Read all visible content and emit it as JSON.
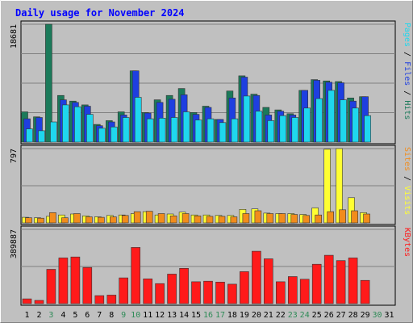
{
  "title": "Daily usage for November 2024",
  "colors": {
    "background": "#c0c0c0",
    "frame_light": "#ffffff",
    "frame_dark": "#808080",
    "title": "#0000ff",
    "hits": "#1b7a5a",
    "files": "#1e3fe0",
    "pages": "#1fd7ee",
    "visits": "#ffff33",
    "sites": "#f28c1c",
    "kbytes": "#ff1a1a",
    "weekday_label": "#000000",
    "weekend_label": "#2e8b57"
  },
  "chart_data": [
    {
      "type": "bar",
      "panel": "hits_files_pages",
      "y_tick_label": "18681",
      "ylim": [
        0,
        18681
      ],
      "right_label": [
        {
          "text": "Pages",
          "color_key": "pages"
        },
        {
          "text": " / ",
          "color_key": "weekday_label"
        },
        {
          "text": "Files",
          "color_key": "files"
        },
        {
          "text": " / ",
          "color_key": "weekday_label"
        },
        {
          "text": "Hits",
          "color_key": "hits"
        }
      ],
      "categories": [
        "1",
        "2",
        "3",
        "4",
        "5",
        "6",
        "7",
        "8",
        "9",
        "10",
        "11",
        "12",
        "13",
        "14",
        "15",
        "16",
        "17",
        "18",
        "19",
        "20",
        "21",
        "22",
        "23",
        "24",
        "25",
        "26",
        "27",
        "28",
        "29",
        "30",
        "31"
      ],
      "series": [
        {
          "name": "Hits",
          "color_key": "hits",
          "values": [
            4800,
            4000,
            18681,
            7400,
            6500,
            5900,
            2800,
            3400,
            4800,
            11300,
            4700,
            6700,
            7400,
            8500,
            4700,
            5700,
            3600,
            8100,
            10500,
            7600,
            5500,
            5100,
            4500,
            8200,
            9900,
            9700,
            9600,
            7000,
            7200,
            0,
            0
          ]
        },
        {
          "name": "Files",
          "color_key": "files",
          "values": [
            3700,
            3900,
            0,
            6700,
            6300,
            5700,
            2600,
            3200,
            4300,
            11300,
            4600,
            6300,
            6800,
            7500,
            4400,
            5500,
            3600,
            7000,
            10300,
            7400,
            4300,
            4900,
            4300,
            8200,
            9800,
            9500,
            9400,
            6500,
            7200,
            0,
            0
          ]
        },
        {
          "name": "Pages",
          "color_key": "pages",
          "values": [
            2100,
            1800,
            3200,
            5900,
            5600,
            4400,
            2200,
            2400,
            3900,
            7100,
            3700,
            3800,
            3900,
            4800,
            3500,
            3700,
            3100,
            3700,
            7300,
            4900,
            3400,
            4200,
            3900,
            5400,
            6900,
            8200,
            6700,
            5400,
            4200,
            0,
            0
          ]
        }
      ]
    },
    {
      "type": "bar",
      "panel": "visits_sites",
      "y_tick_label": "797",
      "ylim": [
        0,
        797
      ],
      "right_label": [
        {
          "text": "Sites",
          "color_key": "sites"
        },
        {
          "text": " / ",
          "color_key": "weekday_label"
        },
        {
          "text": "Visits",
          "color_key": "visits"
        }
      ],
      "categories": [
        "1",
        "2",
        "3",
        "4",
        "5",
        "6",
        "7",
        "8",
        "9",
        "10",
        "11",
        "12",
        "13",
        "14",
        "15",
        "16",
        "17",
        "18",
        "19",
        "20",
        "21",
        "22",
        "23",
        "24",
        "25",
        "26",
        "27",
        "28",
        "29",
        "30",
        "31"
      ],
      "series": [
        {
          "name": "Visits",
          "color_key": "visits",
          "values": [
            60,
            55,
            70,
            85,
            95,
            75,
            65,
            80,
            85,
            100,
            120,
            85,
            95,
            115,
            85,
            85,
            80,
            80,
            145,
            150,
            105,
            100,
            100,
            90,
            160,
            790,
            797,
            270,
            110,
            0,
            0
          ]
        },
        {
          "name": "Sites",
          "color_key": "sites",
          "values": [
            55,
            50,
            110,
            55,
            100,
            65,
            60,
            65,
            80,
            120,
            125,
            100,
            75,
            100,
            75,
            70,
            70,
            65,
            100,
            130,
            100,
            100,
            90,
            80,
            85,
            120,
            140,
            130,
            95,
            0,
            0
          ]
        }
      ]
    },
    {
      "type": "bar",
      "panel": "kbytes",
      "y_tick_label": "389887",
      "ylim": [
        0,
        389887
      ],
      "right_label": [
        {
          "text": "KBytes",
          "color_key": "kbytes"
        }
      ],
      "categories": [
        "1",
        "2",
        "3",
        "4",
        "5",
        "6",
        "7",
        "8",
        "9",
        "10",
        "11",
        "12",
        "13",
        "14",
        "15",
        "16",
        "17",
        "18",
        "19",
        "20",
        "21",
        "22",
        "23",
        "24",
        "25",
        "26",
        "27",
        "28",
        "29",
        "30",
        "31"
      ],
      "series": [
        {
          "name": "KBytes",
          "color_key": "kbytes",
          "values": [
            25000,
            17000,
            180000,
            240000,
            245000,
            190000,
            42000,
            45000,
            135000,
            295000,
            130000,
            105000,
            155000,
            185000,
            115000,
            118000,
            113000,
            102000,
            168000,
            275000,
            235000,
            115000,
            142000,
            128000,
            207000,
            254000,
            226000,
            240000,
            122000,
            0,
            0
          ]
        }
      ]
    }
  ],
  "weekend_days": [
    "3",
    "9",
    "10",
    "16",
    "17",
    "23",
    "24",
    "30"
  ]
}
